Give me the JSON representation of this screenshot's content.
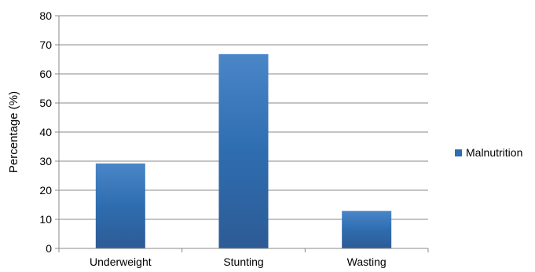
{
  "chart_data": {
    "type": "bar",
    "title": "",
    "xlabel": "",
    "ylabel": "Percentage (%)",
    "categories": [
      "Underweight",
      "Stunting",
      "Wasting"
    ],
    "series": [
      {
        "name": "Malnutrition",
        "values": [
          29.2,
          66.8,
          12.9
        ]
      }
    ],
    "ylim": [
      0,
      80
    ],
    "yticks": [
      "0",
      "10",
      "20",
      "30",
      "40",
      "50",
      "60",
      "70",
      "80"
    ],
    "grid": true,
    "legend_position": "right",
    "colors": {
      "bar_top": "#4a86c8",
      "bar_mid": "#2e6db0",
      "bar_bottom": "#2d5b95",
      "grid": "#888888",
      "axis": "#888888"
    }
  }
}
